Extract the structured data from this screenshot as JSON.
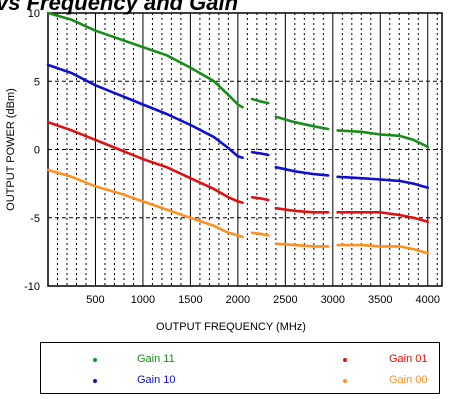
{
  "chart_data": {
    "type": "line",
    "title": "vs Frequency and Gain",
    "xlabel": "OUTPUT FREQUENCY (MHz)",
    "ylabel": "OUTPUT POWER (dBm)",
    "xlim": [
      0,
      4150
    ],
    "ylim": [
      -10,
      10
    ],
    "xticks": [
      500,
      1000,
      1500,
      2000,
      2500,
      3000,
      3500,
      4000
    ],
    "yticks": [
      -10,
      -5,
      0,
      5,
      10
    ],
    "ytick_labels": [
      "-10",
      "-5",
      "0",
      "5",
      "10"
    ],
    "grid": true,
    "legend_position": "below",
    "series": [
      {
        "name": "Gain 11",
        "color": "#1a8c1a",
        "segments": [
          [
            [
              0,
              10.0
            ],
            [
              250,
              9.5
            ],
            [
              500,
              8.7
            ],
            [
              750,
              8.1
            ],
            [
              1000,
              7.5
            ],
            [
              1250,
              6.9
            ],
            [
              1500,
              6.0
            ],
            [
              1750,
              5.0
            ],
            [
              1900,
              4.0
            ],
            [
              2000,
              3.3
            ],
            [
              2050,
              3.1
            ]
          ],
          [
            [
              2150,
              3.7
            ],
            [
              2250,
              3.5
            ],
            [
              2320,
              3.4
            ]
          ],
          [
            [
              2400,
              2.4
            ],
            [
              2600,
              2.0
            ],
            [
              2800,
              1.7
            ],
            [
              2950,
              1.5
            ]
          ],
          [
            [
              3050,
              1.4
            ],
            [
              3300,
              1.3
            ],
            [
              3500,
              1.1
            ],
            [
              3700,
              1.0
            ],
            [
              3850,
              0.7
            ],
            [
              4000,
              0.2
            ]
          ]
        ]
      },
      {
        "name": "Gain 10",
        "color": "#1010d0",
        "segments": [
          [
            [
              0,
              6.2
            ],
            [
              250,
              5.6
            ],
            [
              500,
              4.7
            ],
            [
              750,
              4.0
            ],
            [
              1000,
              3.3
            ],
            [
              1250,
              2.6
            ],
            [
              1500,
              1.8
            ],
            [
              1750,
              0.9
            ],
            [
              1900,
              0.1
            ],
            [
              2000,
              -0.5
            ],
            [
              2050,
              -0.6
            ]
          ],
          [
            [
              2150,
              -0.2
            ],
            [
              2250,
              -0.3
            ],
            [
              2320,
              -0.4
            ]
          ],
          [
            [
              2400,
              -1.3
            ],
            [
              2600,
              -1.6
            ],
            [
              2800,
              -1.8
            ],
            [
              2950,
              -1.9
            ]
          ],
          [
            [
              3050,
              -2.0
            ],
            [
              3300,
              -2.1
            ],
            [
              3500,
              -2.2
            ],
            [
              3700,
              -2.3
            ],
            [
              3850,
              -2.5
            ],
            [
              4000,
              -2.8
            ]
          ]
        ]
      },
      {
        "name": "Gain 01",
        "color": "#e01010",
        "segments": [
          [
            [
              0,
              2.0
            ],
            [
              250,
              1.4
            ],
            [
              500,
              0.7
            ],
            [
              750,
              0.0
            ],
            [
              1000,
              -0.7
            ],
            [
              1250,
              -1.3
            ],
            [
              1500,
              -2.1
            ],
            [
              1750,
              -2.9
            ],
            [
              1900,
              -3.5
            ],
            [
              2000,
              -3.8
            ],
            [
              2050,
              -3.9
            ]
          ],
          [
            [
              2150,
              -3.5
            ],
            [
              2250,
              -3.6
            ],
            [
              2320,
              -3.7
            ]
          ],
          [
            [
              2400,
              -4.3
            ],
            [
              2600,
              -4.5
            ],
            [
              2800,
              -4.6
            ],
            [
              2950,
              -4.6
            ]
          ],
          [
            [
              3050,
              -4.6
            ],
            [
              3300,
              -4.6
            ],
            [
              3500,
              -4.6
            ],
            [
              3700,
              -4.8
            ],
            [
              3850,
              -5.0
            ],
            [
              4000,
              -5.3
            ]
          ]
        ]
      },
      {
        "name": "Gain 00",
        "color": "#ff9020",
        "segments": [
          [
            [
              0,
              -1.5
            ],
            [
              250,
              -2.0
            ],
            [
              500,
              -2.7
            ],
            [
              750,
              -3.2
            ],
            [
              1000,
              -3.8
            ],
            [
              1250,
              -4.4
            ],
            [
              1500,
              -5.0
            ],
            [
              1750,
              -5.6
            ],
            [
              1900,
              -6.1
            ],
            [
              2000,
              -6.3
            ],
            [
              2050,
              -6.4
            ]
          ],
          [
            [
              2150,
              -6.1
            ],
            [
              2250,
              -6.2
            ],
            [
              2320,
              -6.3
            ]
          ],
          [
            [
              2400,
              -6.9
            ],
            [
              2600,
              -7.0
            ],
            [
              2800,
              -7.1
            ],
            [
              2950,
              -7.1
            ]
          ],
          [
            [
              3050,
              -7.0
            ],
            [
              3300,
              -7.0
            ],
            [
              3500,
              -7.1
            ],
            [
              3700,
              -7.1
            ],
            [
              3850,
              -7.3
            ],
            [
              4000,
              -7.6
            ]
          ]
        ]
      }
    ]
  }
}
